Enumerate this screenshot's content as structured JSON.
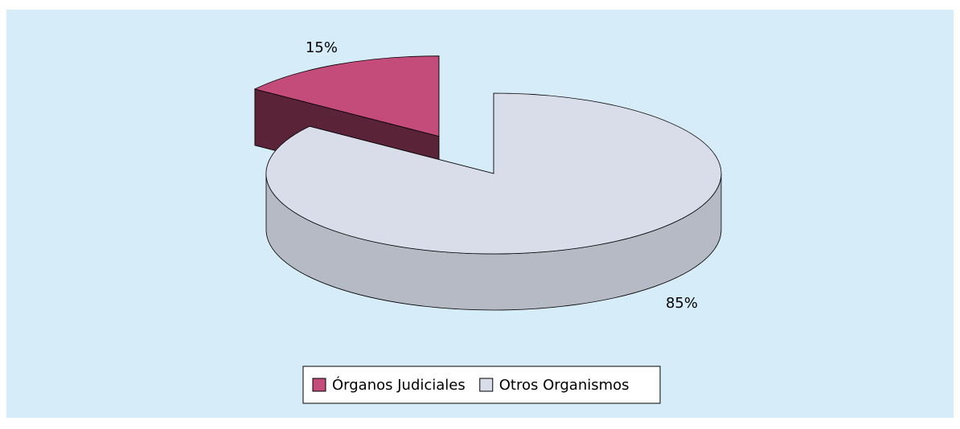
{
  "chart_data": {
    "type": "pie",
    "categories": [
      "Órganos Judiciales",
      "Otros Organismos"
    ],
    "values": [
      15,
      85
    ],
    "value_labels": [
      "15%",
      "85%"
    ],
    "colors": [
      "#c44c7a",
      "#d8dde9"
    ],
    "legend": "bottom"
  }
}
